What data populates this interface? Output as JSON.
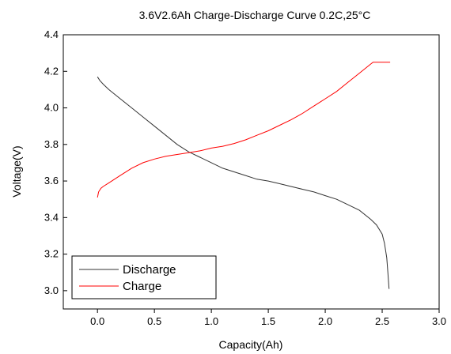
{
  "chart_data": {
    "type": "line",
    "title": "3.6V2.6Ah Charge-Discharge Curve  0.2C,25°C",
    "xlabel": "Capacity(Ah)",
    "ylabel": "Voltage(V)",
    "xlim": [
      -0.3,
      3.0
    ],
    "ylim": [
      2.9,
      4.4
    ],
    "x_ticks": [
      0.0,
      0.5,
      1.0,
      1.5,
      2.0,
      2.5,
      3.0
    ],
    "x_tick_labels": [
      "0.0",
      "0.5",
      "1.0",
      "1.5",
      "2.0",
      "2.5",
      "3.0"
    ],
    "y_ticks": [
      3.0,
      3.2,
      3.4,
      3.6,
      3.8,
      4.0,
      4.2,
      4.4
    ],
    "y_tick_labels": [
      "3.0",
      "3.2",
      "3.4",
      "3.6",
      "3.8",
      "4.0",
      "4.2",
      "4.4"
    ],
    "grid": false,
    "legend_position": "bottom-left",
    "series": [
      {
        "name": "Discharge",
        "color": "#333333",
        "x": [
          0.0,
          0.02,
          0.05,
          0.1,
          0.2,
          0.3,
          0.4,
          0.5,
          0.6,
          0.7,
          0.8,
          0.9,
          1.0,
          1.1,
          1.2,
          1.3,
          1.4,
          1.5,
          1.6,
          1.7,
          1.8,
          1.9,
          2.0,
          2.1,
          2.2,
          2.3,
          2.4,
          2.45,
          2.5,
          2.52,
          2.54,
          2.55,
          2.56
        ],
        "y": [
          4.17,
          4.15,
          4.13,
          4.1,
          4.05,
          4.0,
          3.95,
          3.9,
          3.85,
          3.8,
          3.76,
          3.73,
          3.7,
          3.67,
          3.65,
          3.63,
          3.61,
          3.6,
          3.585,
          3.57,
          3.555,
          3.54,
          3.52,
          3.5,
          3.47,
          3.44,
          3.39,
          3.36,
          3.31,
          3.26,
          3.18,
          3.1,
          3.01
        ]
      },
      {
        "name": "Charge",
        "color": "#ff0000",
        "x": [
          0.0,
          0.01,
          0.03,
          0.05,
          0.1,
          0.2,
          0.3,
          0.4,
          0.5,
          0.6,
          0.7,
          0.8,
          0.9,
          1.0,
          1.1,
          1.2,
          1.3,
          1.4,
          1.5,
          1.6,
          1.7,
          1.8,
          1.9,
          2.0,
          2.1,
          2.2,
          2.3,
          2.4,
          2.42,
          2.5,
          2.57
        ],
        "y": [
          3.51,
          3.54,
          3.56,
          3.57,
          3.59,
          3.63,
          3.67,
          3.7,
          3.72,
          3.735,
          3.745,
          3.755,
          3.765,
          3.78,
          3.79,
          3.805,
          3.825,
          3.85,
          3.875,
          3.905,
          3.935,
          3.97,
          4.01,
          4.05,
          4.09,
          4.14,
          4.19,
          4.24,
          4.25,
          4.25,
          4.25
        ]
      }
    ]
  }
}
